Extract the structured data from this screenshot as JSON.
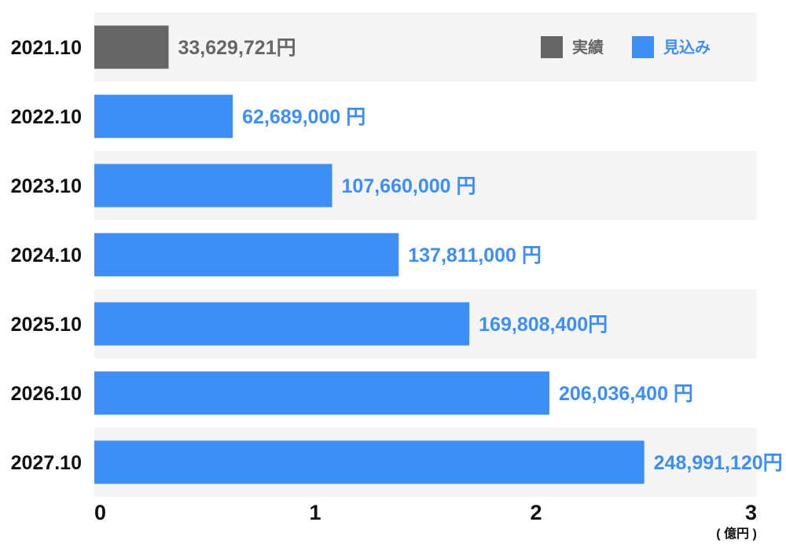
{
  "chart_data": {
    "type": "bar",
    "orientation": "horizontal",
    "categories": [
      "2021.10",
      "2022.10",
      "2023.10",
      "2024.10",
      "2025.10",
      "2026.10",
      "2027.10"
    ],
    "values": [
      33629721,
      62689000,
      107660000,
      137811000,
      169808400,
      206036400,
      248991120
    ],
    "value_labels": [
      "33,629,721円",
      "62,689,000 円",
      "107,660,000 円",
      "137,811,000 円",
      "169,808,400円",
      "206,036,400 円",
      "248,991,120円"
    ],
    "bar_kinds": [
      "actual",
      "forecast",
      "forecast",
      "forecast",
      "forecast",
      "forecast",
      "forecast"
    ],
    "xlim": [
      0,
      300000000
    ],
    "xticks": [
      0,
      100000000,
      200000000,
      300000000
    ],
    "xtick_labels": [
      "0",
      "1",
      "2",
      "3"
    ],
    "x_unit_label": "( 億円 )",
    "legend": {
      "position": "top-right",
      "items": [
        {
          "key": "actual",
          "label": "実績",
          "color": "#666666"
        },
        {
          "key": "forecast",
          "label": "見込み",
          "color": "#3d8ef5"
        }
      ]
    },
    "grid": false
  }
}
